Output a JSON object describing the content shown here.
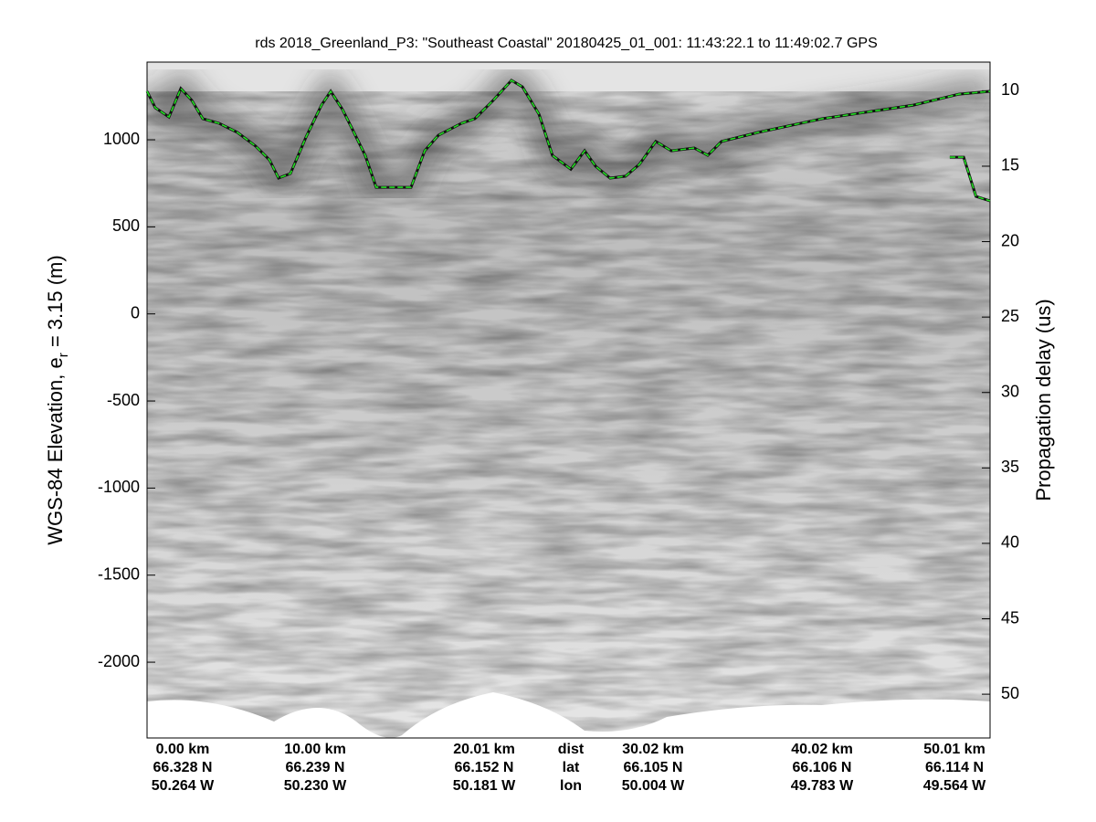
{
  "chart_data": {
    "type": "line",
    "title": "rds 2018_Greenland_P3: \"Southeast Coastal\"  20180425_01_001: 11:43:22.1 to 11:49:02.7 GPS",
    "ylabel": "WGS-84 Elevation, e",
    "ylabel_sub": "r",
    "ylabel_end": " = 3.15 (m)",
    "y2label": "Propagation delay (us)",
    "xlim": [
      -2.31,
      52.31
    ],
    "ylim": [
      -2435,
      1446
    ],
    "yticks": [
      -2000,
      -1500,
      -1000,
      -500,
      0,
      500,
      1000
    ],
    "y2lim": [
      8.1,
      52.9
    ],
    "y2_inverted": true,
    "y2ticks": [
      10,
      15,
      20,
      25,
      30,
      35,
      40,
      45,
      50
    ],
    "x_labels": [
      [
        "0.00 km",
        "66.328 N",
        "50.264 W"
      ],
      [
        "10.00 km",
        "66.239 N",
        "50.230 W"
      ],
      [
        "20.01 km",
        "66.152 N",
        "50.181 W"
      ],
      [
        "dist",
        "lat",
        "lon"
      ],
      [
        "30.02 km",
        "66.105 N",
        "50.004 W"
      ],
      [
        "40.02 km",
        "66.106 N",
        "49.783 W"
      ],
      [
        "50.01 km",
        "66.114 N",
        "49.564 W"
      ]
    ],
    "series": [
      {
        "color": "#22dd22",
        "x": [
          -2.31,
          -1.78,
          -0.89,
          -0.12,
          0.59,
          1.3,
          2.37,
          3.55,
          4.73,
          5.62,
          6.21,
          6.98,
          7.99,
          8.99,
          9.59,
          10.36,
          10.95,
          11.83,
          12.54,
          13.31,
          14.79,
          15.68,
          16.57,
          18.05,
          18.93,
          20.12,
          21.3,
          22.01,
          23.08,
          23.96,
          25.15,
          26.04,
          26.75,
          27.69,
          28.7,
          29.59,
          30.65,
          31.66,
          33.14,
          34.02,
          34.91,
          37.28,
          41.42,
          47.34,
          50.3,
          52.31
        ],
        "values": [
          1278,
          1184,
          1131,
          1294,
          1226,
          1121,
          1094,
          1042,
          963,
          885,
          780,
          806,
          1016,
          1199,
          1278,
          1173,
          1068,
          910,
          727,
          727,
          727,
          937,
          1026,
          1094,
          1121,
          1226,
          1341,
          1304,
          1147,
          910,
          831,
          937,
          848,
          780,
          791,
          859,
          990,
          937,
          953,
          911,
          990,
          1042,
          1121,
          1199,
          1262,
          1278
        ]
      },
      {
        "color": "#22dd22",
        "x": [
          49.7,
          50.6,
          51.4,
          52.31
        ],
        "values": [
          900,
          900,
          675,
          649
        ]
      }
    ]
  }
}
